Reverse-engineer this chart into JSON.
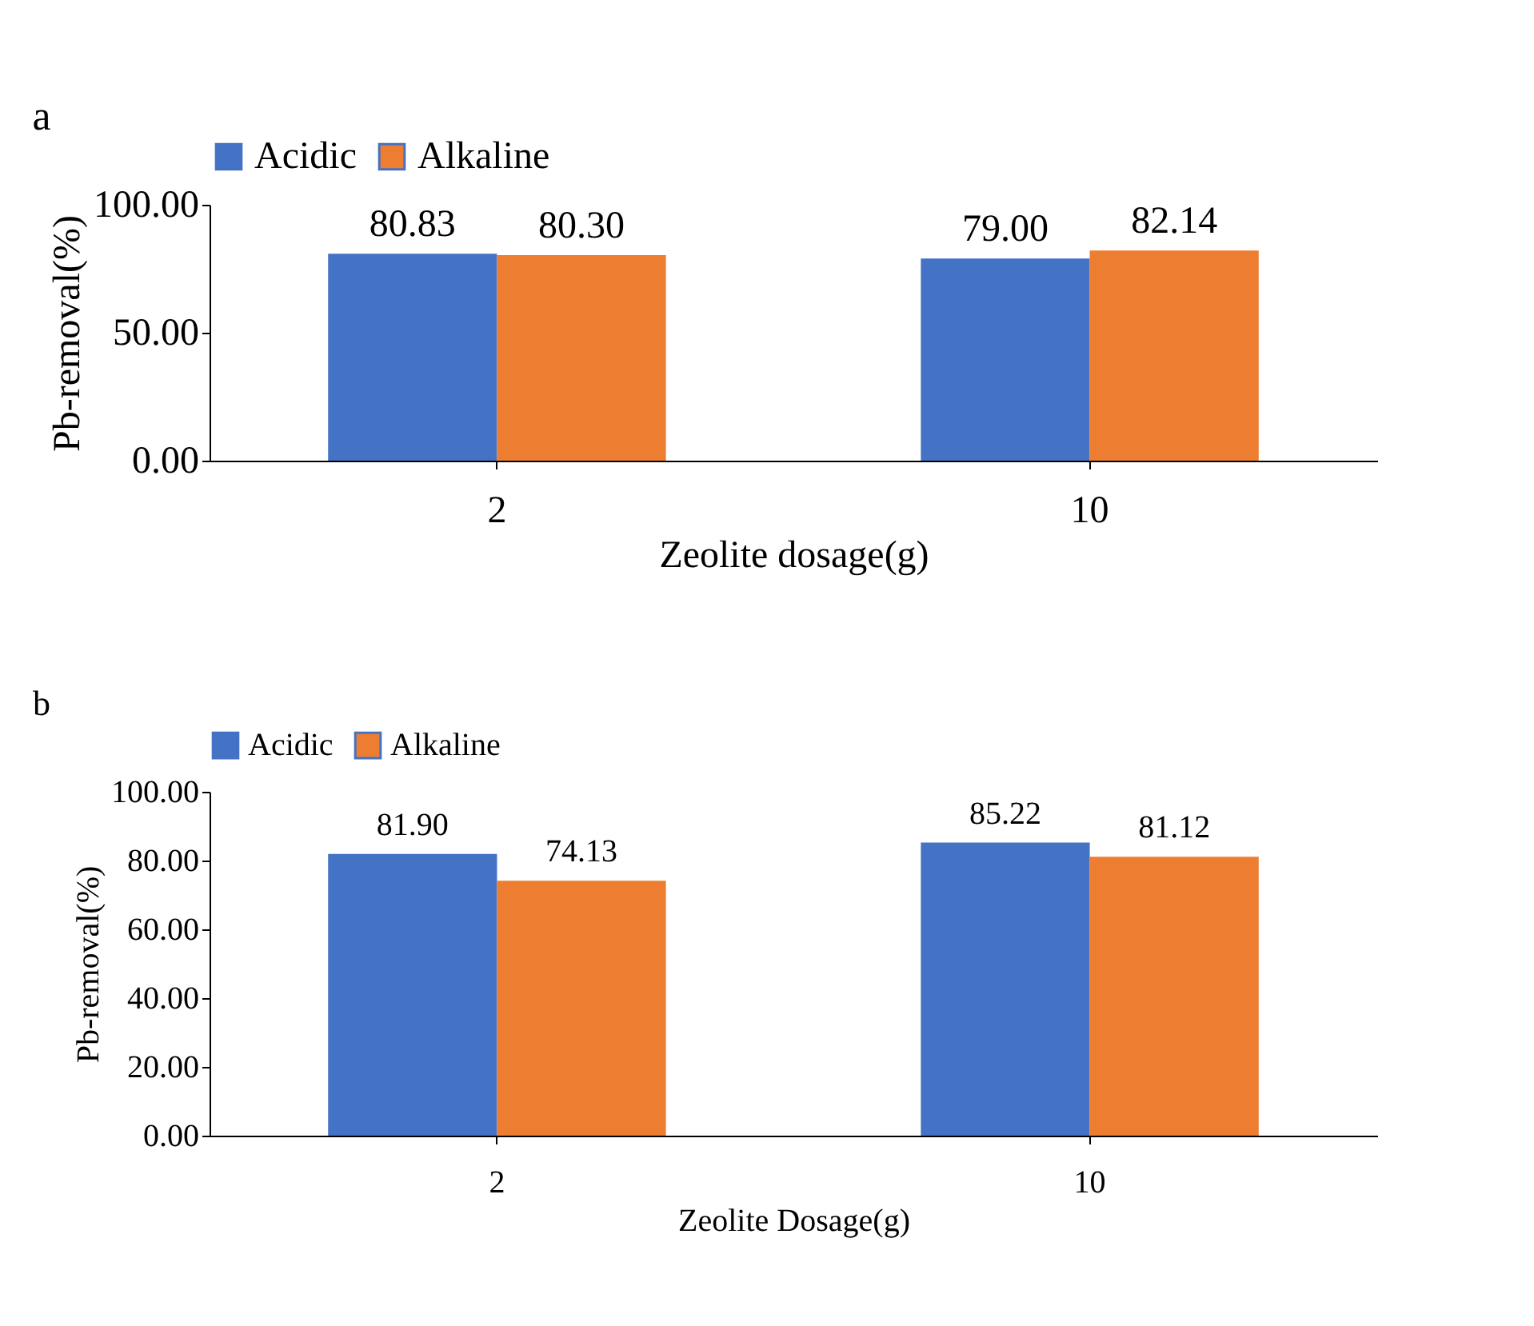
{
  "chart_data": [
    {
      "type": "bar",
      "annotations": [
        "a"
      ],
      "xlabel": "Zeolite dosage(g)",
      "ylabel": "Pb-removal(%)",
      "categories": [
        "2",
        "10"
      ],
      "series": [
        {
          "name": "Acidic",
          "color": "#4472c4",
          "values": [
            80.83,
            79.0
          ],
          "value_labels": [
            "80.83",
            "79.00"
          ]
        },
        {
          "name": "Alkaline",
          "color": "#ed7d31",
          "values": [
            80.3,
            82.14
          ],
          "value_labels": [
            "80.30",
            "82.14"
          ]
        }
      ],
      "ylim": [
        0,
        100
      ],
      "yticks": [
        {
          "value": 0,
          "label": "0.00"
        },
        {
          "value": 50,
          "label": "50.00"
        },
        {
          "value": 100,
          "label": "100.00"
        }
      ],
      "grid": false,
      "legend": "top"
    },
    {
      "type": "bar",
      "annotations": [
        "b"
      ],
      "xlabel": "Zeolite Dosage(g)",
      "ylabel": "Pb-removal(%)",
      "categories": [
        "2",
        "10"
      ],
      "series": [
        {
          "name": "Acidic",
          "color": "#4472c4",
          "values": [
            81.9,
            85.22
          ],
          "value_labels": [
            "81.90",
            "85.22"
          ]
        },
        {
          "name": "Alkaline",
          "color": "#ed7d31",
          "values": [
            74.13,
            81.12
          ],
          "value_labels": [
            "74.13",
            "81.12"
          ]
        }
      ],
      "ylim": [
        0,
        100
      ],
      "yticks": [
        {
          "value": 0,
          "label": "0.00"
        },
        {
          "value": 20,
          "label": "20.00"
        },
        {
          "value": 40,
          "label": "40.00"
        },
        {
          "value": 60,
          "label": "60.00"
        },
        {
          "value": 80,
          "label": "80.00"
        },
        {
          "value": 100,
          "label": "100.00"
        }
      ],
      "grid": false,
      "legend": "top"
    }
  ]
}
